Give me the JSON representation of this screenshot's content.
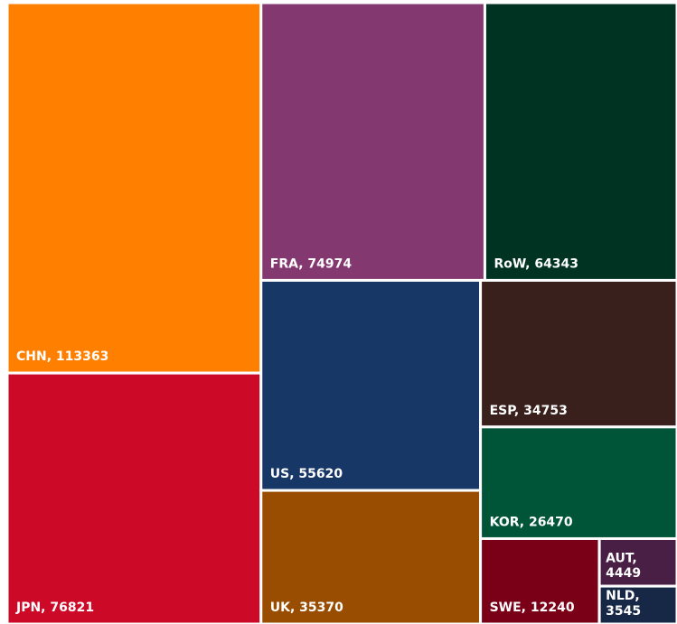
{
  "chart_data": {
    "type": "treemap",
    "values": [
      113363,
      76821,
      74974,
      64343,
      55620,
      35370,
      34753,
      26470,
      12240,
      4449,
      3545
    ],
    "value_labels": [
      "CHN, 113363",
      "JPN, 76821",
      "FRA, 74974",
      "RoW, 64343",
      "US, 55620",
      "UK, 35370",
      "ESP, 34753",
      "KOR, 26470",
      "SWE, 12240",
      "AUT, 4449",
      "NLD, 3545"
    ],
    "colors": [
      "#ff8000",
      "#cc0a28",
      "#843870",
      "#003322",
      "#173766",
      "#994d00",
      "#3a201c",
      "#005538",
      "#7a0018",
      "#4a1f45",
      "#172846"
    ]
  }
}
